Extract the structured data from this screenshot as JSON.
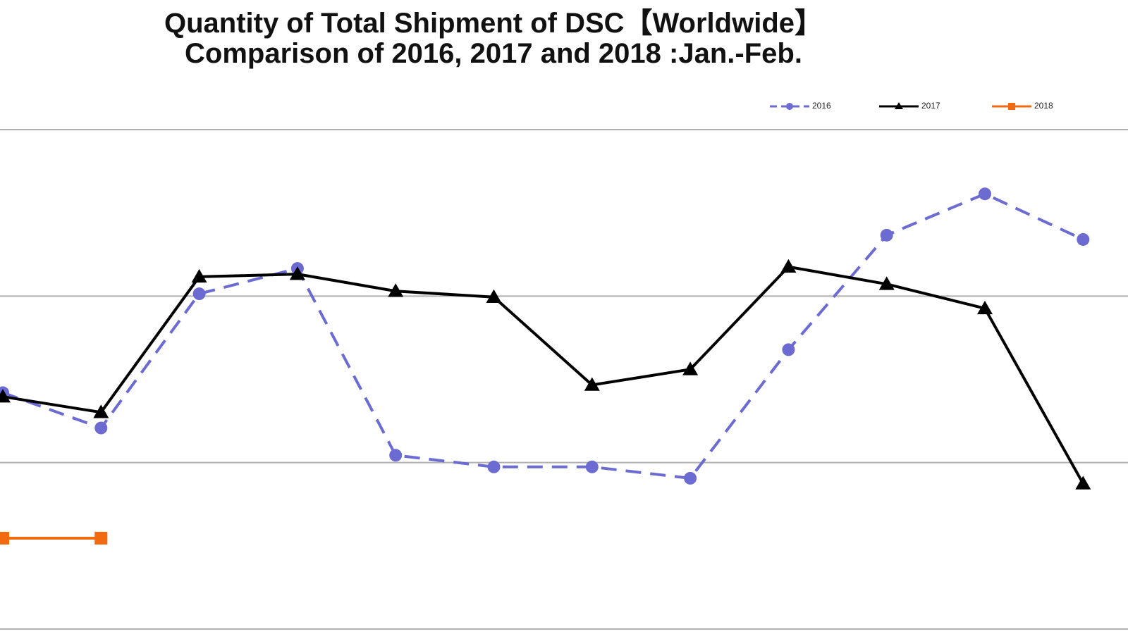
{
  "chart_data": {
    "type": "line",
    "title": "Quantity of Total Shipment of DSC【Worldwide】",
    "subtitle": "Comparison of 2016, 2017 and 2018 :Jan.-Feb.",
    "x_count": 12,
    "grid": true,
    "legend_placement": "top-right",
    "series": [
      {
        "name": "2016",
        "color": "#6b6bd1",
        "style": "dashed",
        "marker": "circle",
        "values": [
          0.71,
          0.604,
          1.007,
          1.083,
          0.522,
          0.487,
          0.487,
          0.453,
          0.839,
          1.183,
          1.307,
          1.17
        ]
      },
      {
        "name": "2017",
        "color": "#000000",
        "style": "solid",
        "marker": "triangle",
        "values": [
          0.698,
          0.651,
          1.058,
          1.066,
          1.015,
          0.997,
          0.733,
          0.78,
          1.088,
          1.036,
          0.963,
          0.437
        ]
      },
      {
        "name": "2018",
        "color": "#f26a10",
        "style": "solid",
        "marker": "square",
        "values": [
          0.273,
          0.273
        ]
      }
    ]
  }
}
